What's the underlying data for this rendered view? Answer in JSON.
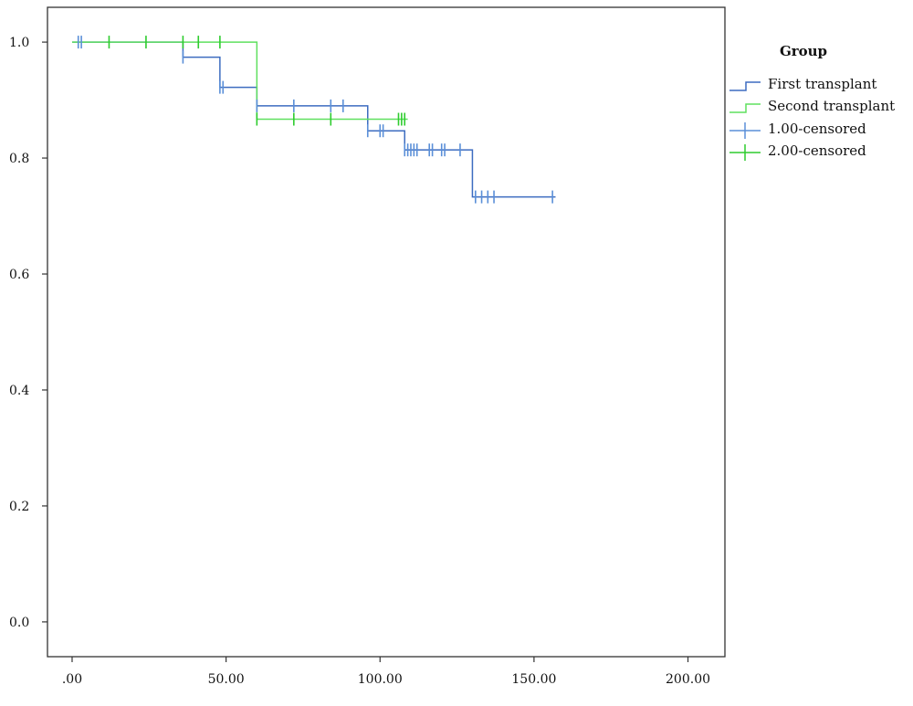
{
  "chart_data": {
    "type": "line",
    "subtype": "kaplan-meier-survival",
    "title": "",
    "xlabel": "",
    "ylabel": "",
    "xlim": [
      -8,
      212
    ],
    "ylim": [
      -0.06,
      1.06
    ],
    "x_ticks": [
      0,
      50,
      100,
      150,
      200
    ],
    "x_tick_labels": [
      ".00",
      "50.00",
      "100.00",
      "150.00",
      "200.00"
    ],
    "y_ticks": [
      0.0,
      0.2,
      0.4,
      0.6,
      0.8,
      1.0
    ],
    "y_tick_labels": [
      "0.0",
      "0.2",
      "0.4",
      "0.6",
      "0.8",
      "1.0"
    ],
    "grid": false,
    "legend": {
      "title": "Group",
      "placement": "right-top",
      "entries": [
        {
          "label": "First transplant",
          "kind": "step",
          "series": "first"
        },
        {
          "label": "Second transplant",
          "kind": "step",
          "series": "second"
        },
        {
          "label": "1.00-censored",
          "kind": "censor",
          "series": "first"
        },
        {
          "label": "2.00-censored",
          "kind": "censor",
          "series": "second"
        }
      ]
    },
    "series": [
      {
        "id": "first",
        "name": "First transplant",
        "color": "#3d6cc0",
        "censor_color": "#5a8fd8",
        "steps": [
          {
            "x": 0,
            "y": 1.0
          },
          {
            "x": 36,
            "y": 0.974
          },
          {
            "x": 48,
            "y": 0.922
          },
          {
            "x": 60,
            "y": 0.89
          },
          {
            "x": 96,
            "y": 0.847
          },
          {
            "x": 108,
            "y": 0.814
          },
          {
            "x": 130,
            "y": 0.733
          }
        ],
        "end_x": 157,
        "censored": [
          {
            "x": 2,
            "y": 1.0
          },
          {
            "x": 3,
            "y": 1.0
          },
          {
            "x": 36,
            "y": 0.974
          },
          {
            "x": 48,
            "y": 0.922
          },
          {
            "x": 49,
            "y": 0.922
          },
          {
            "x": 60,
            "y": 0.89
          },
          {
            "x": 72,
            "y": 0.89
          },
          {
            "x": 84,
            "y": 0.89
          },
          {
            "x": 88,
            "y": 0.89
          },
          {
            "x": 96,
            "y": 0.847
          },
          {
            "x": 100,
            "y": 0.847
          },
          {
            "x": 101,
            "y": 0.847
          },
          {
            "x": 108,
            "y": 0.814
          },
          {
            "x": 109,
            "y": 0.814
          },
          {
            "x": 110,
            "y": 0.814
          },
          {
            "x": 111,
            "y": 0.814
          },
          {
            "x": 112,
            "y": 0.814
          },
          {
            "x": 116,
            "y": 0.814
          },
          {
            "x": 117,
            "y": 0.814
          },
          {
            "x": 120,
            "y": 0.814
          },
          {
            "x": 121,
            "y": 0.814
          },
          {
            "x": 126,
            "y": 0.814
          },
          {
            "x": 131,
            "y": 0.733
          },
          {
            "x": 133,
            "y": 0.733
          },
          {
            "x": 135,
            "y": 0.733
          },
          {
            "x": 137,
            "y": 0.733
          },
          {
            "x": 156,
            "y": 0.733
          }
        ]
      },
      {
        "id": "second",
        "name": "Second transplant",
        "color": "#5fe05f",
        "censor_color": "#2ecc2e",
        "steps": [
          {
            "x": 0,
            "y": 1.0
          },
          {
            "x": 60,
            "y": 0.867
          }
        ],
        "end_x": 109,
        "censored": [
          {
            "x": 12,
            "y": 1.0
          },
          {
            "x": 24,
            "y": 1.0
          },
          {
            "x": 36,
            "y": 1.0
          },
          {
            "x": 41,
            "y": 1.0
          },
          {
            "x": 48,
            "y": 1.0
          },
          {
            "x": 60,
            "y": 0.867
          },
          {
            "x": 72,
            "y": 0.867
          },
          {
            "x": 84,
            "y": 0.867
          },
          {
            "x": 106,
            "y": 0.867
          },
          {
            "x": 107,
            "y": 0.867
          },
          {
            "x": 108,
            "y": 0.867
          }
        ]
      }
    ]
  }
}
